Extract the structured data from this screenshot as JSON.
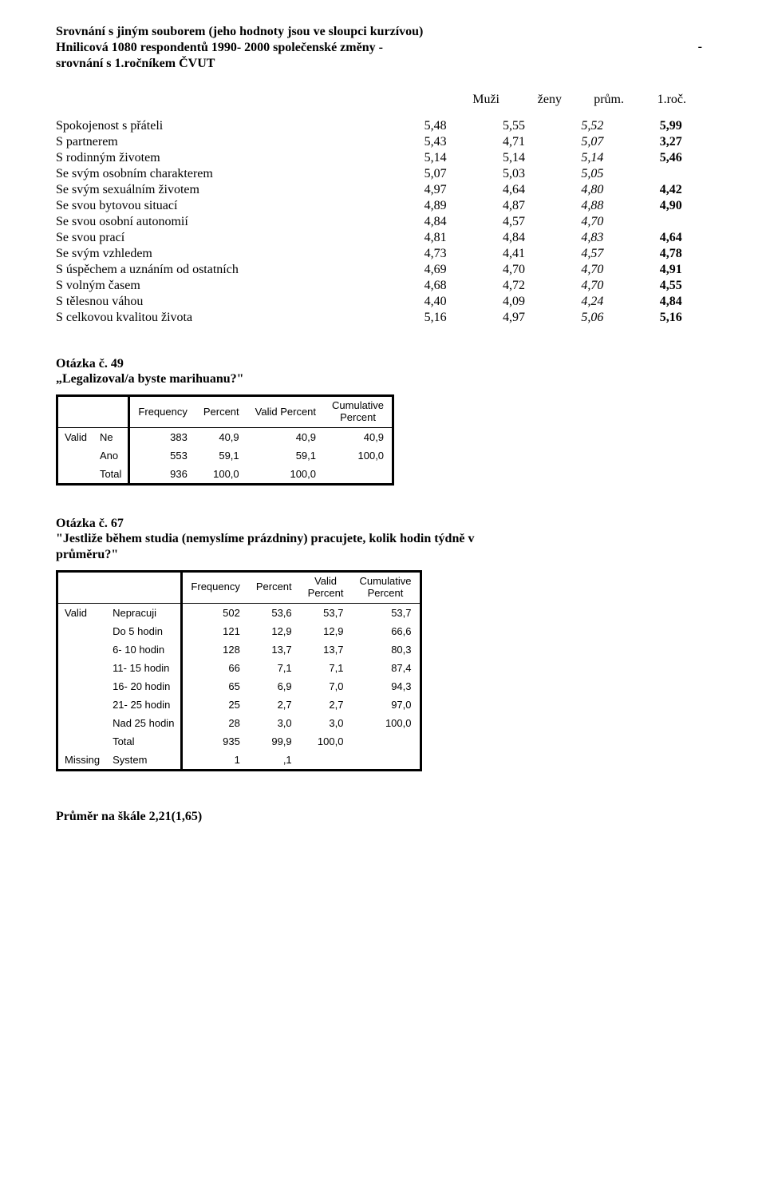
{
  "header": {
    "line1": "Srovnání s jiným souborem (jeho hodnoty jsou ve sloupci kurzívou)",
    "line2_left": "Hnilicová 1080 respondentů 1990- 2000 společenské změny -",
    "line2_dash": "-",
    "line3": "srovnání s 1.ročníkem ČVUT"
  },
  "statHeader": {
    "c1": "Muži",
    "c2": "ženy",
    "c3": "prům.",
    "c4": "1.roč."
  },
  "stats": [
    {
      "label": "Spokojenost s přáteli",
      "v": [
        "5,48",
        "5,55",
        "5,52",
        "5,99"
      ],
      "ital": 2
    },
    {
      "label": "S partnerem",
      "v": [
        "5,43",
        "4,71",
        "5,07",
        "3,27"
      ],
      "ital": 2
    },
    {
      "label": "S rodinným životem",
      "v": [
        "5,14",
        "5,14",
        "5,14",
        "5,46"
      ],
      "ital": 2
    },
    {
      "label": "Se svým osobním charakterem",
      "v": [
        "5,07",
        "5,03",
        "5,05",
        ""
      ],
      "ital": 2
    },
    {
      "label": "Se svým sexuálním životem",
      "v": [
        "4,97",
        "4,64",
        "4,80",
        "4,42"
      ],
      "ital": 2
    },
    {
      "label": "Se svou bytovou situací",
      "v": [
        "4,89",
        "4,87",
        "4,88",
        "4,90"
      ],
      "ital": 2
    },
    {
      "label": "Se svou osobní autonomií",
      "v": [
        "4,84",
        "4,57",
        "4,70",
        ""
      ],
      "ital": 2
    },
    {
      "label": "Se svou prací",
      "v": [
        "4,81",
        "4,84",
        "4,83",
        "4,64"
      ],
      "ital": 2
    },
    {
      "label": "Se svým vzhledem",
      "v": [
        "4,73",
        "4,41",
        "4,57",
        "4,78"
      ],
      "ital": 2
    },
    {
      "label": "S úspěchem a uznáním od ostatních",
      "v": [
        "4,69",
        "4,70",
        "4,70",
        "4,91"
      ],
      "ital": 2
    },
    {
      "label": "S volným časem",
      "v": [
        "4,68",
        "4,72",
        "4,70",
        "4,55"
      ],
      "ital": 2
    },
    {
      "label": "S tělesnou váhou",
      "v": [
        "4,40",
        "4,09",
        "4,24",
        "4,84"
      ],
      "ital": 2
    },
    {
      "label": "S celkovou kvalitou života",
      "v": [
        "5,16",
        "4,97",
        "5,06",
        "5,16"
      ],
      "ital": 2
    }
  ],
  "q49": {
    "title_l1": "Otázka č. 49",
    "title_l2": "„Legalizoval/a  byste marihuanu?\"",
    "columns": [
      "Frequency",
      "Percent",
      "Valid Percent",
      "Cumulative\nPercent"
    ],
    "group": "Valid",
    "rows": [
      {
        "cat": "Ne",
        "cells": [
          "383",
          "40,9",
          "40,9",
          "40,9"
        ]
      },
      {
        "cat": "Ano",
        "cells": [
          "553",
          "59,1",
          "59,1",
          "100,0"
        ]
      },
      {
        "cat": "Total",
        "cells": [
          "936",
          "100,0",
          "100,0",
          ""
        ]
      }
    ]
  },
  "q67": {
    "title_l1": "Otázka č. 67",
    "title_l2": "\"Jestliže během studia (nemyslíme prázdniny) pracujete, kolik hodin týdně v",
    "title_l3": "průměru?\"",
    "columns": [
      "Frequency",
      "Percent",
      "Valid\nPercent",
      "Cumulative\nPercent"
    ],
    "groups": [
      {
        "label": "Valid",
        "rows": [
          {
            "cat": "Nepracuji",
            "cells": [
              "502",
              "53,6",
              "53,7",
              "53,7"
            ]
          },
          {
            "cat": "Do 5 hodin",
            "cells": [
              "121",
              "12,9",
              "12,9",
              "66,6"
            ]
          },
          {
            "cat": "6- 10 hodin",
            "cells": [
              "128",
              "13,7",
              "13,7",
              "80,3"
            ]
          },
          {
            "cat": "11- 15 hodin",
            "cells": [
              "66",
              "7,1",
              "7,1",
              "87,4"
            ]
          },
          {
            "cat": "16- 20 hodin",
            "cells": [
              "65",
              "6,9",
              "7,0",
              "94,3"
            ]
          },
          {
            "cat": "21- 25 hodin",
            "cells": [
              "25",
              "2,7",
              "2,7",
              "97,0"
            ]
          },
          {
            "cat": "Nad 25 hodin",
            "cells": [
              "28",
              "3,0",
              "3,0",
              "100,0"
            ]
          },
          {
            "cat": "Total",
            "cells": [
              "935",
              "99,9",
              "100,0",
              ""
            ]
          }
        ]
      },
      {
        "label": "Missing",
        "rows": [
          {
            "cat": "System",
            "cells": [
              "1",
              ",1",
              "",
              ""
            ]
          }
        ]
      }
    ]
  },
  "footer": "Průměr na škále 2,21(1,65)"
}
